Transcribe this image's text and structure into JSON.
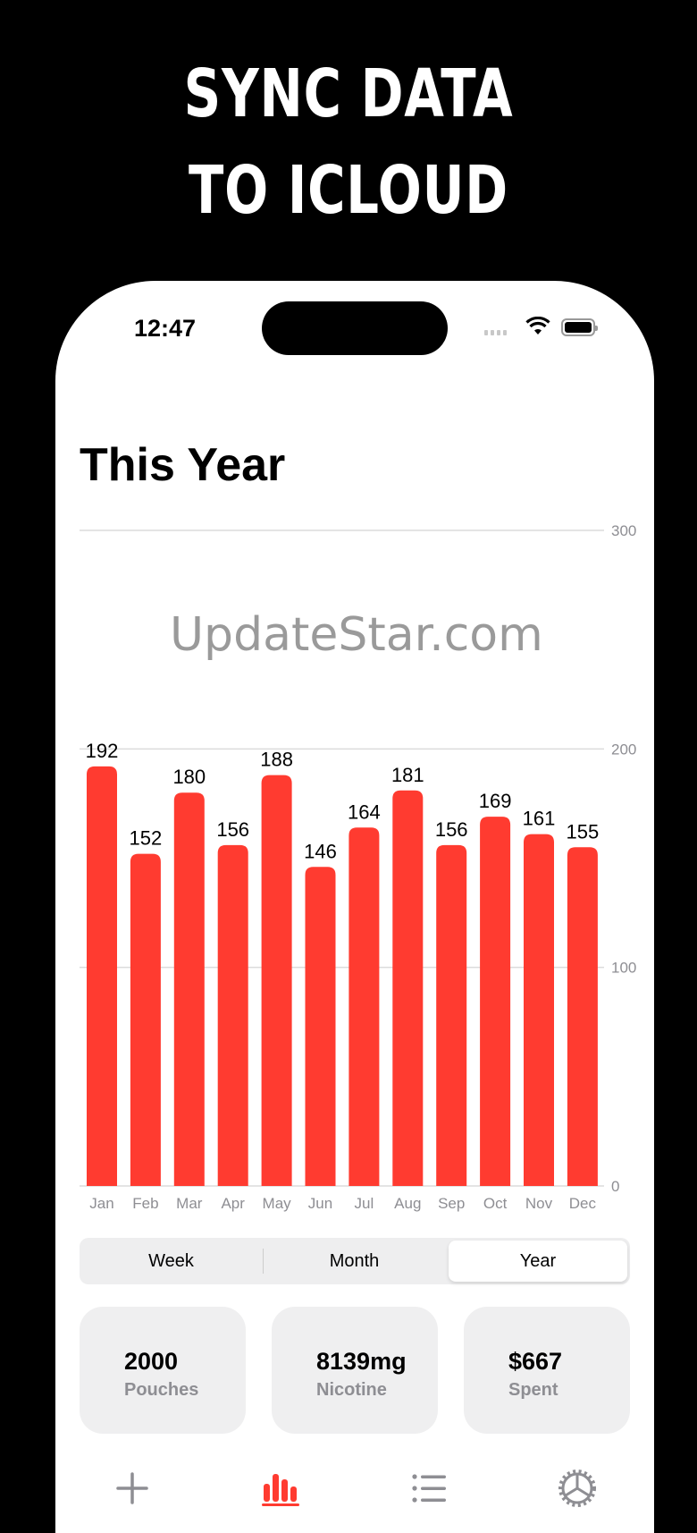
{
  "promo": {
    "line1": "SYNC DATA",
    "line2": "TO  ICLOUD"
  },
  "status_bar": {
    "time": "12:47"
  },
  "header": {
    "title": "This Year"
  },
  "colors": {
    "accent": "#FF3B30",
    "card_bg": "#EFEFF0",
    "secondary_text": "#8E8E93"
  },
  "chart_data": {
    "type": "bar",
    "categories": [
      "Jan",
      "Feb",
      "Mar",
      "Apr",
      "May",
      "Jun",
      "Jul",
      "Aug",
      "Sep",
      "Oct",
      "Nov",
      "Dec"
    ],
    "values": [
      192,
      152,
      180,
      156,
      188,
      146,
      164,
      181,
      156,
      169,
      161,
      155
    ],
    "y_ticks": [
      "0",
      "100",
      "200",
      "300"
    ],
    "ylim": [
      0,
      300
    ],
    "grid": true,
    "data_labels": true
  },
  "segmented": {
    "options": [
      "Week",
      "Month",
      "Year"
    ],
    "selected": "Year"
  },
  "stats": [
    {
      "value": "2000",
      "label": "Pouches"
    },
    {
      "value": "8139mg",
      "label": "Nicotine"
    },
    {
      "value": "$667",
      "label": "Spent"
    }
  ],
  "tabbar": {
    "icons": [
      "plus-icon",
      "chart-bar-icon",
      "list-icon",
      "gear-icon"
    ],
    "active": "chart-bar-icon"
  },
  "watermark": "UpdateStar.com"
}
